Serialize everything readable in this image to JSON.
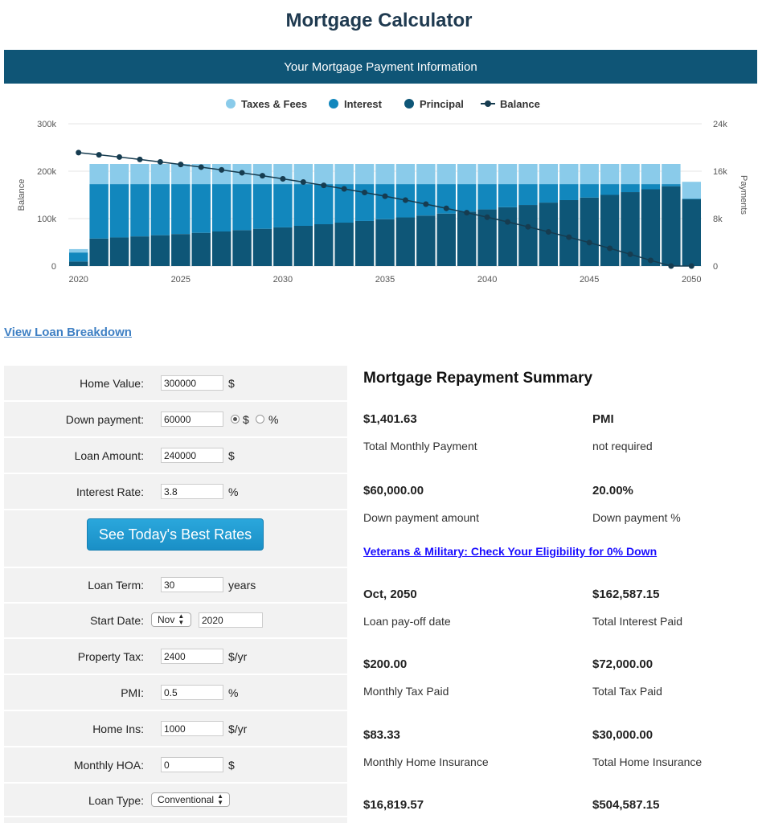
{
  "page": {
    "title": "Mortgage Calculator"
  },
  "banner": {
    "text": "Your Mortgage Payment Information"
  },
  "chart_data": {
    "type": "bar",
    "legend": [
      {
        "name": "Taxes & Fees",
        "color": "#8acbea"
      },
      {
        "name": "Interest",
        "color": "#1287bd"
      },
      {
        "name": "Principal",
        "color": "#0e5677"
      },
      {
        "name": "Balance",
        "color": "#163c50"
      }
    ],
    "legend_position": "top-center",
    "x": [
      2020,
      2021,
      2022,
      2023,
      2024,
      2025,
      2026,
      2027,
      2028,
      2029,
      2030,
      2031,
      2032,
      2033,
      2034,
      2035,
      2036,
      2037,
      2038,
      2039,
      2040,
      2041,
      2042,
      2043,
      2044,
      2045,
      2046,
      2047,
      2048,
      2049,
      2050
    ],
    "x_ticks": [
      "2020",
      "2025",
      "2030",
      "2035",
      "2040",
      "2045",
      "2050"
    ],
    "y_left_label": "Balance",
    "y_left_ticks": [
      "0",
      "100k",
      "200k",
      "300k"
    ],
    "y_left_range": [
      0,
      300000
    ],
    "y_right_label": "Payments",
    "y_right_ticks": [
      "0",
      "8k",
      "16k",
      "24k"
    ],
    "y_right_range": [
      0,
      24000
    ],
    "series": [
      {
        "name": "Principal",
        "axis": "right",
        "values": [
          765,
          4640,
          4820,
          5000,
          5200,
          5400,
          5600,
          5830,
          6050,
          6280,
          6520,
          6780,
          7050,
          7320,
          7600,
          7900,
          8200,
          8510,
          8850,
          9190,
          9550,
          9920,
          10300,
          10700,
          11120,
          11550,
          12000,
          12470,
          12950,
          13460,
          11280
        ]
      },
      {
        "name": "Interest",
        "axis": "right",
        "values": [
          1520,
          9180,
          9000,
          8820,
          8620,
          8420,
          8220,
          7990,
          7770,
          7540,
          7300,
          7040,
          6770,
          6500,
          6220,
          5920,
          5620,
          5310,
          4970,
          4630,
          4270,
          3900,
          3520,
          3120,
          2700,
          2270,
          1820,
          1350,
          870,
          360,
          100
        ]
      },
      {
        "name": "Taxes & Fees",
        "axis": "right",
        "values": [
          570,
          3400,
          3400,
          3400,
          3400,
          3400,
          3400,
          3400,
          3400,
          3400,
          3400,
          3400,
          3400,
          3400,
          3400,
          3400,
          3400,
          3400,
          3400,
          3400,
          3400,
          3400,
          3400,
          3400,
          3400,
          3400,
          3400,
          3400,
          3400,
          3400,
          2830
        ]
      },
      {
        "name": "Balance",
        "axis": "left",
        "type": "line",
        "values": [
          239235,
          234595,
          229775,
          224775,
          219575,
          214175,
          208575,
          202745,
          196695,
          190415,
          183895,
          177115,
          170065,
          162745,
          155145,
          147245,
          139045,
          130535,
          121685,
          112495,
          102945,
          93025,
          82725,
          72025,
          60905,
          49355,
          37355,
          24885,
          11935,
          0,
          0
        ]
      }
    ]
  },
  "links": {
    "view_breakdown": "View Loan Breakdown",
    "veterans": "Veterans & Military: Check Your Eligibility for 0% Down"
  },
  "form": {
    "home_value": {
      "label": "Home Value:",
      "value": "300000",
      "unit": "$"
    },
    "down_payment": {
      "label": "Down payment:",
      "value": "60000",
      "unit_dollar": "$",
      "unit_percent": "%",
      "selected": "$"
    },
    "loan_amount": {
      "label": "Loan Amount:",
      "value": "240000",
      "unit": "$"
    },
    "interest_rate": {
      "label": "Interest Rate:",
      "value": "3.8",
      "unit": "%"
    },
    "rates_button": "See Today's Best Rates",
    "loan_term": {
      "label": "Loan Term:",
      "value": "30",
      "unit": "years"
    },
    "start_date": {
      "label": "Start Date:",
      "month": "Nov",
      "year": "2020"
    },
    "property_tax": {
      "label": "Property Tax:",
      "value": "2400",
      "unit": "$/yr"
    },
    "pmi": {
      "label": "PMI:",
      "value": "0.5",
      "unit": "%"
    },
    "home_ins": {
      "label": "Home Ins:",
      "value": "1000",
      "unit": "$/yr"
    },
    "monthly_hoa": {
      "label": "Monthly HOA:",
      "value": "0",
      "unit": "$"
    },
    "loan_type": {
      "label": "Loan Type:",
      "value": "Conventional"
    }
  },
  "summary": {
    "title": "Mortgage Repayment Summary",
    "total_monthly_payment": {
      "value": "$1,401.63",
      "label": "Total Monthly Payment"
    },
    "pmi": {
      "value": "PMI",
      "label": "not required"
    },
    "down_payment_amount": {
      "value": "$60,000.00",
      "label": "Down payment amount"
    },
    "down_payment_pct": {
      "value": "20.00%",
      "label": "Down payment %"
    },
    "payoff_date": {
      "value": "Oct, 2050",
      "label": "Loan pay-off date"
    },
    "total_interest": {
      "value": "$162,587.15",
      "label": "Total Interest Paid"
    },
    "monthly_tax": {
      "value": "$200.00",
      "label": "Monthly Tax Paid"
    },
    "total_tax": {
      "value": "$72,000.00",
      "label": "Total Tax Paid"
    },
    "monthly_insurance": {
      "value": "$83.33",
      "label": "Monthly Home Insurance"
    },
    "total_insurance": {
      "value": "$30,000.00",
      "label": "Total Home Insurance"
    },
    "row6_left": {
      "value": "$16,819.57"
    },
    "row6_right": {
      "value": "$504,587.15"
    }
  }
}
